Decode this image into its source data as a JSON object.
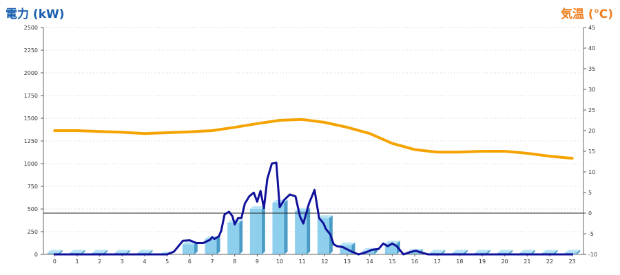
{
  "chart_data": {
    "type": "bar",
    "left_axis": {
      "title": "電力 (kW)",
      "color": "#1a5fb0",
      "ylim": [
        0,
        2500
      ],
      "ticks": [
        "0",
        "250",
        "500",
        "750",
        "1000",
        "1250",
        "1500",
        "1750",
        "2000",
        "2250",
        "2500"
      ]
    },
    "right_axis": {
      "title": "気温 (℃)",
      "color": "#f07f1e",
      "ylim": [
        -10,
        45
      ],
      "ticks": [
        "-10",
        "-5",
        "0",
        "5",
        "10",
        "15",
        "20",
        "25",
        "30",
        "35",
        "40",
        "45"
      ]
    },
    "categories": [
      "0",
      "1",
      "2",
      "3",
      "4",
      "5",
      "6",
      "7",
      "8",
      "9",
      "10",
      "11",
      "12",
      "13",
      "14",
      "15",
      "16",
      "17",
      "18",
      "19",
      "20",
      "21",
      "22",
      "23"
    ],
    "series": [
      {
        "kind": "bar",
        "axis": "left",
        "color": "#8ecfee",
        "values": [
          20,
          20,
          20,
          20,
          20,
          0,
          110,
          170,
          350,
          500,
          570,
          480,
          400,
          100,
          40,
          120,
          30,
          20,
          20,
          20,
          20,
          20,
          20,
          20
        ]
      },
      {
        "kind": "line",
        "axis": "left",
        "color": "#10109a",
        "points": [
          [
            0,
            0
          ],
          [
            1,
            0
          ],
          [
            2,
            0
          ],
          [
            3,
            0
          ],
          [
            4,
            0
          ],
          [
            5,
            0
          ],
          [
            5.3,
            30
          ],
          [
            5.7,
            150
          ],
          [
            6,
            155
          ],
          [
            6.3,
            125
          ],
          [
            6.6,
            125
          ],
          [
            6.9,
            160
          ],
          [
            7.0,
            190
          ],
          [
            7.1,
            170
          ],
          [
            7.3,
            200
          ],
          [
            7.4,
            260
          ],
          [
            7.55,
            440
          ],
          [
            7.75,
            470
          ],
          [
            7.9,
            420
          ],
          [
            8.0,
            330
          ],
          [
            8.15,
            400
          ],
          [
            8.3,
            400
          ],
          [
            8.45,
            560
          ],
          [
            8.65,
            640
          ],
          [
            8.85,
            680
          ],
          [
            9.0,
            580
          ],
          [
            9.15,
            700
          ],
          [
            9.3,
            510
          ],
          [
            9.45,
            830
          ],
          [
            9.65,
            1000
          ],
          [
            9.85,
            1010
          ],
          [
            10.0,
            520
          ],
          [
            10.2,
            600
          ],
          [
            10.45,
            660
          ],
          [
            10.7,
            640
          ],
          [
            10.9,
            420
          ],
          [
            11.05,
            340
          ],
          [
            11.3,
            560
          ],
          [
            11.55,
            710
          ],
          [
            11.75,
            400
          ],
          [
            11.95,
            340
          ],
          [
            12.05,
            280
          ],
          [
            12.25,
            220
          ],
          [
            12.4,
            110
          ],
          [
            12.55,
            90
          ],
          [
            12.8,
            80
          ],
          [
            13.0,
            55
          ],
          [
            13.2,
            30
          ],
          [
            13.5,
            0
          ],
          [
            13.8,
            20
          ],
          [
            14.1,
            50
          ],
          [
            14.4,
            60
          ],
          [
            14.6,
            120
          ],
          [
            14.8,
            90
          ],
          [
            15.0,
            120
          ],
          [
            15.2,
            90
          ],
          [
            15.5,
            0
          ],
          [
            15.8,
            25
          ],
          [
            16.05,
            40
          ],
          [
            16.3,
            20
          ],
          [
            16.6,
            0
          ],
          [
            17,
            0
          ],
          [
            18,
            0
          ],
          [
            19,
            0
          ],
          [
            20,
            0
          ],
          [
            21,
            0
          ],
          [
            22,
            0
          ],
          [
            23,
            0
          ]
        ]
      },
      {
        "kind": "line",
        "axis": "right",
        "color": "#f5a300",
        "points": [
          [
            0,
            20.0
          ],
          [
            1,
            20.0
          ],
          [
            2,
            19.8
          ],
          [
            3,
            19.6
          ],
          [
            4,
            19.3
          ],
          [
            5,
            19.5
          ],
          [
            6,
            19.7
          ],
          [
            7,
            20.0
          ],
          [
            8,
            20.8
          ],
          [
            9,
            21.7
          ],
          [
            10,
            22.5
          ],
          [
            11,
            22.7
          ],
          [
            12,
            22.0
          ],
          [
            13,
            20.8
          ],
          [
            14,
            19.3
          ],
          [
            15,
            16.9
          ],
          [
            16,
            15.4
          ],
          [
            17,
            14.8
          ],
          [
            18,
            14.8
          ],
          [
            19,
            15.0
          ],
          [
            20,
            15.0
          ],
          [
            21,
            14.5
          ],
          [
            22,
            13.8
          ],
          [
            23,
            13.3
          ]
        ]
      }
    ],
    "reference_line": {
      "axis": "right",
      "value": 0
    },
    "grid": true
  }
}
